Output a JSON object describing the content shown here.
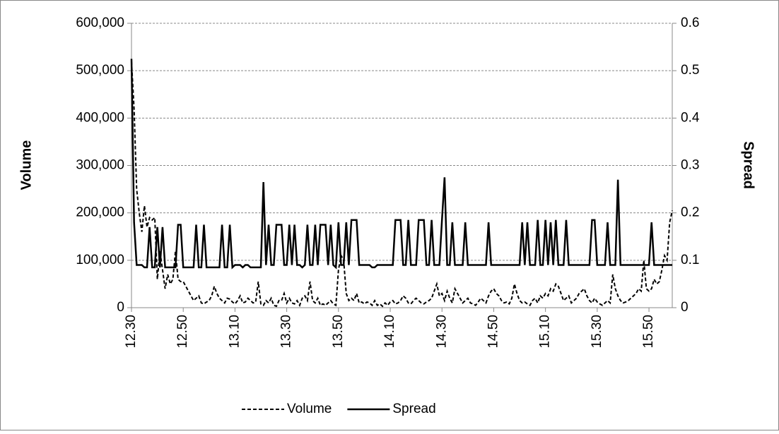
{
  "chart_data": {
    "type": "line",
    "categories": [
      "12.30",
      null,
      null,
      null,
      null,
      null,
      null,
      null,
      null,
      null,
      null,
      null,
      null,
      null,
      null,
      null,
      null,
      null,
      null,
      null,
      "12.50",
      null,
      null,
      null,
      null,
      null,
      null,
      null,
      null,
      null,
      null,
      null,
      null,
      null,
      null,
      null,
      null,
      null,
      null,
      null,
      "13.10",
      null,
      null,
      null,
      null,
      null,
      null,
      null,
      null,
      null,
      null,
      null,
      null,
      null,
      null,
      null,
      null,
      null,
      null,
      null,
      "13.30",
      null,
      null,
      null,
      null,
      null,
      null,
      null,
      null,
      null,
      null,
      null,
      null,
      null,
      null,
      null,
      null,
      null,
      null,
      null,
      "13.50",
      null,
      null,
      null,
      null,
      null,
      null,
      null,
      null,
      null,
      null,
      null,
      null,
      null,
      null,
      null,
      null,
      null,
      null,
      null,
      "14.10",
      null,
      null,
      null,
      null,
      null,
      null,
      null,
      null,
      null,
      null,
      null,
      null,
      null,
      null,
      null,
      null,
      null,
      null,
      null,
      "14.30",
      null,
      null,
      null,
      null,
      null,
      null,
      null,
      null,
      null,
      null,
      null,
      null,
      null,
      null,
      null,
      null,
      null,
      null,
      null,
      "14.50",
      null,
      null,
      null,
      null,
      null,
      null,
      null,
      null,
      null,
      null,
      null,
      null,
      null,
      null,
      null,
      null,
      null,
      null,
      null,
      "15.10",
      null,
      null,
      null,
      null,
      null,
      null,
      null,
      null,
      null,
      null,
      null,
      null,
      null,
      null,
      null,
      null,
      null,
      null,
      null,
      "15.30",
      null,
      null,
      null,
      null,
      null,
      null,
      null,
      null,
      null,
      null,
      null,
      null,
      null,
      null,
      null,
      null,
      null,
      null,
      null,
      "15.50",
      null,
      null,
      null,
      null,
      null,
      null,
      null,
      null,
      null
    ],
    "series": [
      {
        "name": "Volume",
        "color": "#000000",
        "style": "dashed",
        "values": [
          520000,
          420000,
          250000,
          200000,
          160000,
          215000,
          170000,
          190000,
          185000,
          190000,
          60000,
          120000,
          80000,
          40000,
          70000,
          50000,
          60000,
          120000,
          60000,
          55000,
          55000,
          45000,
          35000,
          25000,
          15000,
          20000,
          25000,
          10000,
          8000,
          12000,
          15000,
          25000,
          45000,
          30000,
          20000,
          15000,
          10000,
          20000,
          18000,
          12000,
          8000,
          15000,
          25000,
          10000,
          12000,
          20000,
          15000,
          10000,
          12000,
          55000,
          8000,
          5000,
          15000,
          10000,
          20000,
          5000,
          3000,
          15000,
          15000,
          30000,
          10000,
          20000,
          10000,
          8000,
          15000,
          5000,
          20000,
          25000,
          15000,
          55000,
          15000,
          10000,
          20000,
          5000,
          8000,
          5000,
          10000,
          15000,
          8000,
          5000,
          80000,
          110000,
          100000,
          30000,
          15000,
          20000,
          15000,
          30000,
          10000,
          12000,
          8000,
          12000,
          10000,
          5000,
          15000,
          5000,
          8000,
          3000,
          10000,
          5000,
          12000,
          15000,
          8000,
          10000,
          15000,
          25000,
          20000,
          10000,
          8000,
          15000,
          20000,
          15000,
          10000,
          8000,
          12000,
          15000,
          20000,
          35000,
          50000,
          25000,
          30000,
          15000,
          35000,
          20000,
          10000,
          40000,
          30000,
          20000,
          10000,
          15000,
          20000,
          10000,
          8000,
          5000,
          12000,
          20000,
          15000,
          10000,
          25000,
          35000,
          40000,
          30000,
          25000,
          15000,
          10000,
          12000,
          8000,
          20000,
          50000,
          30000,
          15000,
          10000,
          12000,
          8000,
          5000,
          15000,
          20000,
          10000,
          25000,
          20000,
          30000,
          25000,
          40000,
          35000,
          50000,
          45000,
          30000,
          15000,
          20000,
          25000,
          10000,
          15000,
          20000,
          30000,
          35000,
          40000,
          25000,
          15000,
          10000,
          20000,
          12000,
          8000,
          5000,
          10000,
          15000,
          10000,
          70000,
          40000,
          25000,
          15000,
          10000,
          12000,
          15000,
          20000,
          25000,
          30000,
          40000,
          35000,
          100000,
          40000,
          35000,
          40000,
          60000,
          50000,
          55000,
          80000,
          110000,
          100000,
          180000,
          205000
        ]
      },
      {
        "name": "Spread",
        "color": "#000000",
        "style": "solid",
        "axis": "y2",
        "values": [
          0.525,
          0.18,
          0.09,
          0.09,
          0.09,
          0.085,
          0.085,
          0.17,
          0.085,
          0.085,
          0.17,
          0.085,
          0.17,
          0.085,
          0.085,
          0.085,
          0.085,
          0.085,
          0.175,
          0.175,
          0.085,
          0.085,
          0.085,
          0.085,
          0.085,
          0.175,
          0.085,
          0.085,
          0.175,
          0.085,
          0.085,
          0.085,
          0.085,
          0.085,
          0.085,
          0.175,
          0.085,
          0.085,
          0.175,
          0.085,
          0.09,
          0.09,
          0.09,
          0.085,
          0.09,
          0.09,
          0.085,
          0.085,
          0.085,
          0.085,
          0.085,
          0.265,
          0.09,
          0.175,
          0.09,
          0.09,
          0.175,
          0.175,
          0.175,
          0.09,
          0.09,
          0.175,
          0.09,
          0.175,
          0.09,
          0.09,
          0.085,
          0.09,
          0.175,
          0.09,
          0.09,
          0.175,
          0.09,
          0.175,
          0.175,
          0.175,
          0.09,
          0.175,
          0.09,
          0.085,
          0.18,
          0.09,
          0.09,
          0.18,
          0.09,
          0.185,
          0.185,
          0.185,
          0.09,
          0.09,
          0.09,
          0.09,
          0.09,
          0.085,
          0.085,
          0.09,
          0.09,
          0.09,
          0.09,
          0.09,
          0.09,
          0.09,
          0.185,
          0.185,
          0.185,
          0.09,
          0.09,
          0.185,
          0.09,
          0.09,
          0.09,
          0.185,
          0.185,
          0.185,
          0.09,
          0.09,
          0.185,
          0.09,
          0.09,
          0.09,
          0.185,
          0.275,
          0.09,
          0.09,
          0.18,
          0.09,
          0.09,
          0.09,
          0.09,
          0.18,
          0.09,
          0.09,
          0.09,
          0.09,
          0.09,
          0.09,
          0.09,
          0.09,
          0.18,
          0.09,
          0.09,
          0.09,
          0.09,
          0.09,
          0.09,
          0.09,
          0.09,
          0.09,
          0.09,
          0.09,
          0.09,
          0.18,
          0.09,
          0.18,
          0.09,
          0.09,
          0.09,
          0.185,
          0.09,
          0.09,
          0.185,
          0.09,
          0.18,
          0.09,
          0.185,
          0.09,
          0.09,
          0.09,
          0.185,
          0.09,
          0.09,
          0.09,
          0.09,
          0.09,
          0.09,
          0.09,
          0.09,
          0.09,
          0.185,
          0.185,
          0.09,
          0.09,
          0.09,
          0.09,
          0.18,
          0.09,
          0.09,
          0.09,
          0.27,
          0.09,
          0.09,
          0.09,
          0.09,
          0.09,
          0.09,
          0.09,
          0.09,
          0.09,
          0.09,
          0.09,
          0.09,
          0.18,
          0.09,
          0.09,
          0.09,
          0.09,
          0.09,
          0.09,
          0.09,
          0.09
        ]
      }
    ],
    "y_label": "Volume",
    "y2_label": "Spread",
    "ylim": [
      0,
      600000
    ],
    "yticks": [
      0,
      {
        "value": 100000,
        "label": "100,000"
      },
      {
        "value": 200000,
        "label": "200,000"
      },
      {
        "value": 300000,
        "label": "300,000"
      },
      {
        "value": 400000,
        "label": "400,000"
      },
      {
        "value": 500000,
        "label": "500,000"
      },
      {
        "value": 600000,
        "label": "600,000"
      }
    ],
    "y2lim": [
      0,
      0.6
    ],
    "y2ticks": [
      0,
      0.1,
      0.2,
      0.3,
      0.4,
      0.5,
      0.6
    ],
    "grid": true,
    "legend": "bottom"
  }
}
